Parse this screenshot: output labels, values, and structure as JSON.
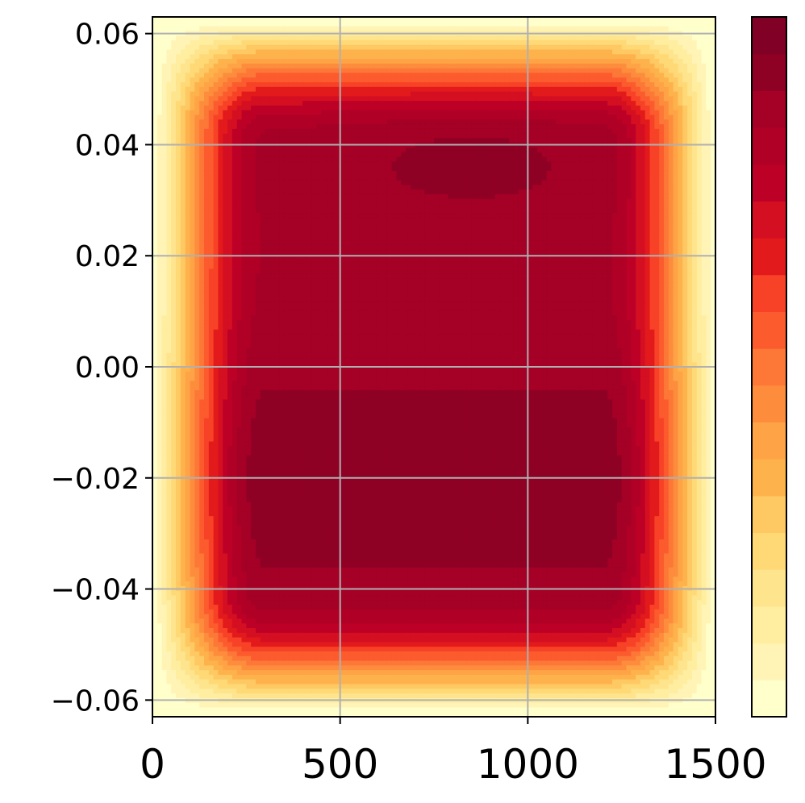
{
  "chart_data": {
    "type": "heatmap",
    "title": "",
    "xlabel": "",
    "ylabel": "",
    "xlim": [
      0,
      1500
    ],
    "ylim": [
      -0.063,
      0.063
    ],
    "x_ticks": [
      {
        "value": 0,
        "label": "0"
      },
      {
        "value": 500,
        "label": "500"
      },
      {
        "value": 1000,
        "label": "1000"
      },
      {
        "value": 1500,
        "label": "1500"
      }
    ],
    "y_ticks": [
      {
        "value": 0.06,
        "label": "0.06"
      },
      {
        "value": 0.04,
        "label": "0.04"
      },
      {
        "value": 0.02,
        "label": "0.02"
      },
      {
        "value": 0.0,
        "label": "0.00"
      },
      {
        "value": -0.02,
        "label": "−0.02"
      },
      {
        "value": -0.04,
        "label": "−0.04"
      },
      {
        "value": -0.06,
        "label": "−0.06"
      }
    ],
    "grid": true,
    "colormap": "YlOrRd",
    "colorbar": {
      "levels": 19,
      "labels_shown": false
    },
    "contour_levels": 19,
    "field_description": "Field is near zero at the left and right edges and top/bottom edges, rising to a plateau with two maxima: a strong lobe around y=-0.03 to 0 spanning x≈300-1300 and an upper lobe around y=0.035 with peak near x≈850.",
    "palette": [
      "#ffffcc",
      "#fff4b5",
      "#ffeda0",
      "#fee48c",
      "#fed976",
      "#fec863",
      "#feb24c",
      "#fea446",
      "#fd8d3c",
      "#fd7736",
      "#fc5b2e",
      "#f84227",
      "#e31a1c",
      "#d50f22",
      "#bd0026",
      "#b00026",
      "#a50026",
      "#8f0025",
      "#800026"
    ]
  }
}
